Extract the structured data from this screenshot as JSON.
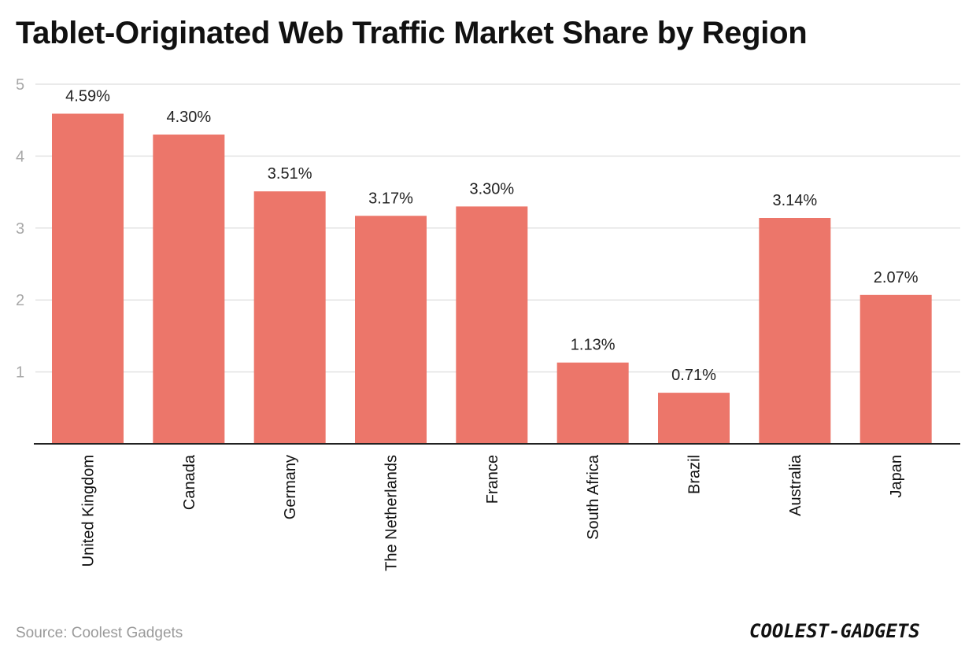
{
  "source": "Source: Coolest Gadgets",
  "logo_text": "COOLEST-GADGETS",
  "colors": {
    "bar": "#ec766a",
    "grid": "#e3e3e3",
    "axis": "#222222"
  },
  "chart_data": {
    "type": "bar",
    "title": "Tablet-Originated Web Traffic Market Share by Region",
    "categories": [
      "United Kingdom",
      "Canada",
      "Germany",
      "The Netherlands",
      "France",
      "South Africa",
      "Brazil",
      "Australia",
      "Japan"
    ],
    "values": [
      4.59,
      4.3,
      3.51,
      3.17,
      3.3,
      1.13,
      0.71,
      3.14,
      2.07
    ],
    "data_labels": [
      "4.59%",
      "4.30%",
      "3.51%",
      "3.17%",
      "3.30%",
      "1.13%",
      "0.71%",
      "3.14%",
      "2.07%"
    ],
    "xlabel": "",
    "ylabel": "",
    "ylim": [
      0,
      5
    ],
    "yticks": [
      1,
      2,
      3,
      4,
      5
    ],
    "grid": true,
    "legend": "none"
  }
}
